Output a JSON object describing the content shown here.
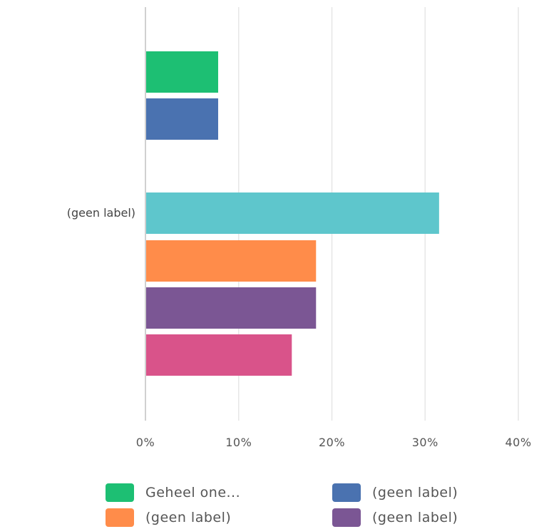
{
  "chart_data": {
    "type": "bar",
    "orientation": "horizontal",
    "categories": [
      "(geen label)"
    ],
    "series": [
      {
        "name": "Geheel one...",
        "values": [
          7.8
        ],
        "color": "#1dbf73"
      },
      {
        "name": "(geen label)",
        "values": [
          7.8
        ],
        "color": "#4a72b0"
      },
      {
        "values": [
          31.5
        ],
        "color": "#5ec6cc"
      },
      {
        "name": "(geen label)",
        "values": [
          18.3
        ],
        "color": "#ff8c4a"
      },
      {
        "name": "(geen label)",
        "values": [
          18.3
        ],
        "color": "#7b5694"
      },
      {
        "values": [
          15.7
        ],
        "color": "#d9538a"
      }
    ],
    "xlim": [
      0,
      40
    ],
    "x_ticks": [
      "0%",
      "10%",
      "20%",
      "30%",
      "40%"
    ],
    "grid": true,
    "legend_position": "bottom",
    "title": "",
    "xlabel": "",
    "ylabel": ""
  }
}
